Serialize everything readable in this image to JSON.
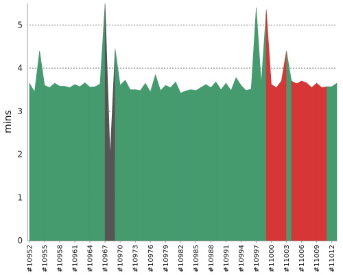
{
  "chart_data": {
    "type": "area",
    "ylabel": "mins",
    "xlabel": "",
    "title": "",
    "ylim": [
      0,
      5.5
    ],
    "yticks": [
      "0",
      "1",
      "2",
      "3",
      "4",
      "5"
    ],
    "grid": true,
    "legend": "none",
    "x_start": 10952,
    "x_end": 11013,
    "xtick_labels": [
      "#10952",
      "#10955",
      "#10958",
      "#10961",
      "#10964",
      "#10967",
      "#10970",
      "#10973",
      "#10976",
      "#10979",
      "#10982",
      "#10985",
      "#10988",
      "#10991",
      "#10994",
      "#10997",
      "#11000",
      "#11003",
      "#11006",
      "#11009",
      "#11012"
    ],
    "colors": {
      "success": "#459b6e",
      "failure": "#d63636",
      "aborted": "#555555"
    },
    "builds": [
      {
        "x": 10952,
        "y": 3.65,
        "status": "success"
      },
      {
        "x": 10953,
        "y": 3.45,
        "status": "success"
      },
      {
        "x": 10954,
        "y": 4.4,
        "status": "success"
      },
      {
        "x": 10955,
        "y": 3.6,
        "status": "success"
      },
      {
        "x": 10956,
        "y": 3.55,
        "status": "success"
      },
      {
        "x": 10957,
        "y": 3.65,
        "status": "success"
      },
      {
        "x": 10958,
        "y": 3.58,
        "status": "success"
      },
      {
        "x": 10959,
        "y": 3.58,
        "status": "success"
      },
      {
        "x": 10960,
        "y": 3.55,
        "status": "success"
      },
      {
        "x": 10961,
        "y": 3.62,
        "status": "success"
      },
      {
        "x": 10962,
        "y": 3.57,
        "status": "success"
      },
      {
        "x": 10963,
        "y": 3.66,
        "status": "success"
      },
      {
        "x": 10964,
        "y": 3.56,
        "status": "success"
      },
      {
        "x": 10965,
        "y": 3.57,
        "status": "success"
      },
      {
        "x": 10966,
        "y": 3.63,
        "status": "success"
      },
      {
        "x": 10967,
        "y": 5.5,
        "status": "aborted"
      },
      {
        "x": 10968,
        "y": 1.95,
        "status": "aborted"
      },
      {
        "x": 10969,
        "y": 4.45,
        "status": "success"
      },
      {
        "x": 10970,
        "y": 3.6,
        "status": "success"
      },
      {
        "x": 10971,
        "y": 3.72,
        "status": "success"
      },
      {
        "x": 10972,
        "y": 3.5,
        "status": "success"
      },
      {
        "x": 10973,
        "y": 3.5,
        "status": "success"
      },
      {
        "x": 10974,
        "y": 3.48,
        "status": "success"
      },
      {
        "x": 10975,
        "y": 3.65,
        "status": "success"
      },
      {
        "x": 10976,
        "y": 3.45,
        "status": "success"
      },
      {
        "x": 10977,
        "y": 3.85,
        "status": "success"
      },
      {
        "x": 10978,
        "y": 3.48,
        "status": "success"
      },
      {
        "x": 10979,
        "y": 3.6,
        "status": "success"
      },
      {
        "x": 10980,
        "y": 3.55,
        "status": "success"
      },
      {
        "x": 10981,
        "y": 3.68,
        "status": "success"
      },
      {
        "x": 10982,
        "y": 3.42,
        "status": "success"
      },
      {
        "x": 10983,
        "y": 3.47,
        "status": "success"
      },
      {
        "x": 10984,
        "y": 3.5,
        "status": "success"
      },
      {
        "x": 10985,
        "y": 3.48,
        "status": "success"
      },
      {
        "x": 10986,
        "y": 3.55,
        "status": "success"
      },
      {
        "x": 10987,
        "y": 3.62,
        "status": "success"
      },
      {
        "x": 10988,
        "y": 3.55,
        "status": "success"
      },
      {
        "x": 10989,
        "y": 3.68,
        "status": "success"
      },
      {
        "x": 10990,
        "y": 3.5,
        "status": "success"
      },
      {
        "x": 10991,
        "y": 3.65,
        "status": "success"
      },
      {
        "x": 10992,
        "y": 3.48,
        "status": "success"
      },
      {
        "x": 10993,
        "y": 3.78,
        "status": "success"
      },
      {
        "x": 10994,
        "y": 3.6,
        "status": "success"
      },
      {
        "x": 10995,
        "y": 3.48,
        "status": "success"
      },
      {
        "x": 10996,
        "y": 3.52,
        "status": "success"
      },
      {
        "x": 10997,
        "y": 5.4,
        "status": "success"
      },
      {
        "x": 10998,
        "y": 3.65,
        "status": "success"
      },
      {
        "x": 10999,
        "y": 5.35,
        "status": "failure"
      },
      {
        "x": 11000,
        "y": 3.62,
        "status": "failure"
      },
      {
        "x": 11001,
        "y": 3.55,
        "status": "failure"
      },
      {
        "x": 11002,
        "y": 3.7,
        "status": "failure"
      },
      {
        "x": 11003,
        "y": 4.4,
        "status": "success"
      },
      {
        "x": 11004,
        "y": 3.7,
        "status": "failure"
      },
      {
        "x": 11005,
        "y": 3.64,
        "status": "failure"
      },
      {
        "x": 11006,
        "y": 3.7,
        "status": "failure"
      },
      {
        "x": 11007,
        "y": 3.66,
        "status": "failure"
      },
      {
        "x": 11008,
        "y": 3.55,
        "status": "failure"
      },
      {
        "x": 11009,
        "y": 3.65,
        "status": "failure"
      },
      {
        "x": 11010,
        "y": 3.55,
        "status": "failure"
      },
      {
        "x": 11011,
        "y": 3.57,
        "status": "success"
      },
      {
        "x": 11012,
        "y": 3.57,
        "status": "success"
      },
      {
        "x": 11013,
        "y": 3.65,
        "status": "success"
      }
    ]
  }
}
